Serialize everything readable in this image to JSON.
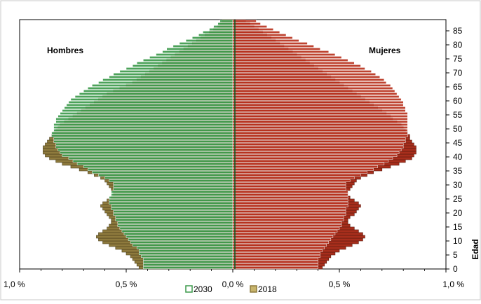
{
  "chart_data": {
    "type": "bar",
    "orientation": "horizontal",
    "title": "",
    "xlabel": "",
    "ylabel": "Edad",
    "xlim": [
      -1.0,
      1.0
    ],
    "ylim": [
      0,
      89
    ],
    "x_tick_labels": [
      "1,0 %",
      "0,5 %",
      "0,0 %",
      "0,5 %",
      "1,0 %"
    ],
    "x_tick_values": [
      -1.0,
      -0.5,
      0.0,
      0.5,
      1.0
    ],
    "y_tick_labels": [
      "0",
      "5",
      "10",
      "15",
      "20",
      "25",
      "30",
      "35",
      "40",
      "45",
      "50",
      "55",
      "60",
      "65",
      "70",
      "75",
      "80",
      "85"
    ],
    "y_tick_values": [
      0,
      5,
      10,
      15,
      20,
      25,
      30,
      35,
      40,
      45,
      50,
      55,
      60,
      65,
      70,
      75,
      80,
      85
    ],
    "grid": false,
    "legend_position": "bottom-center",
    "annotations": {
      "left": "Hombres",
      "right": "Mujeres"
    },
    "ages": [
      0,
      1,
      2,
      3,
      4,
      5,
      6,
      7,
      8,
      9,
      10,
      11,
      12,
      13,
      14,
      15,
      16,
      17,
      18,
      19,
      20,
      21,
      22,
      23,
      24,
      25,
      26,
      27,
      28,
      29,
      30,
      31,
      32,
      33,
      34,
      35,
      36,
      37,
      38,
      39,
      40,
      41,
      42,
      43,
      44,
      45,
      46,
      47,
      48,
      49,
      50,
      51,
      52,
      53,
      54,
      55,
      56,
      57,
      58,
      59,
      60,
      61,
      62,
      63,
      64,
      65,
      66,
      67,
      68,
      69,
      70,
      71,
      72,
      73,
      74,
      75,
      76,
      77,
      78,
      79,
      80,
      81,
      82,
      83,
      84,
      85,
      86,
      87,
      88
    ],
    "series": [
      {
        "name": "2030",
        "colors": {
          "male": "#3d9a4c",
          "female": "#b8331f"
        },
        "male": [
          0.42,
          0.42,
          0.42,
          0.42,
          0.43,
          0.44,
          0.44,
          0.45,
          0.47,
          0.48,
          0.49,
          0.5,
          0.51,
          0.52,
          0.53,
          0.54,
          0.54,
          0.55,
          0.55,
          0.56,
          0.56,
          0.57,
          0.57,
          0.58,
          0.58,
          0.58,
          0.57,
          0.57,
          0.56,
          0.56,
          0.56,
          0.58,
          0.6,
          0.63,
          0.66,
          0.68,
          0.7,
          0.73,
          0.75,
          0.77,
          0.8,
          0.81,
          0.82,
          0.83,
          0.83,
          0.84,
          0.84,
          0.85,
          0.85,
          0.84,
          0.84,
          0.84,
          0.83,
          0.83,
          0.82,
          0.81,
          0.8,
          0.79,
          0.78,
          0.77,
          0.76,
          0.74,
          0.72,
          0.7,
          0.68,
          0.66,
          0.63,
          0.61,
          0.58,
          0.56,
          0.53,
          0.5,
          0.47,
          0.45,
          0.42,
          0.39,
          0.36,
          0.33,
          0.31,
          0.28,
          0.25,
          0.22,
          0.19,
          0.16,
          0.14,
          0.11,
          0.09,
          0.07,
          0.06
        ],
        "female": [
          0.4,
          0.4,
          0.4,
          0.4,
          0.41,
          0.41,
          0.42,
          0.43,
          0.44,
          0.45,
          0.46,
          0.47,
          0.48,
          0.49,
          0.5,
          0.51,
          0.51,
          0.52,
          0.52,
          0.53,
          0.53,
          0.53,
          0.54,
          0.54,
          0.54,
          0.54,
          0.54,
          0.54,
          0.53,
          0.53,
          0.53,
          0.55,
          0.57,
          0.6,
          0.63,
          0.66,
          0.68,
          0.71,
          0.73,
          0.75,
          0.77,
          0.78,
          0.79,
          0.8,
          0.8,
          0.81,
          0.81,
          0.82,
          0.82,
          0.82,
          0.82,
          0.82,
          0.82,
          0.82,
          0.82,
          0.82,
          0.81,
          0.81,
          0.8,
          0.8,
          0.79,
          0.78,
          0.77,
          0.76,
          0.75,
          0.74,
          0.72,
          0.71,
          0.69,
          0.67,
          0.65,
          0.62,
          0.6,
          0.57,
          0.54,
          0.51,
          0.48,
          0.45,
          0.41,
          0.38,
          0.35,
          0.31,
          0.28,
          0.25,
          0.22,
          0.19,
          0.16,
          0.13,
          0.11
        ]
      },
      {
        "name": "2018",
        "colors": {
          "male": "#8e7a3d",
          "female": "#a82e1c"
        },
        "male": [
          0.44,
          0.45,
          0.46,
          0.47,
          0.48,
          0.5,
          0.52,
          0.55,
          0.58,
          0.61,
          0.63,
          0.64,
          0.63,
          0.61,
          0.59,
          0.58,
          0.57,
          0.57,
          0.58,
          0.59,
          0.6,
          0.61,
          0.62,
          0.61,
          0.59,
          0.57,
          0.56,
          0.56,
          0.57,
          0.58,
          0.59,
          0.6,
          0.62,
          0.65,
          0.68,
          0.72,
          0.76,
          0.8,
          0.83,
          0.86,
          0.88,
          0.89,
          0.89,
          0.89,
          0.88,
          0.87,
          0.86,
          0.85,
          0.84,
          0.83,
          0.82,
          0.81,
          0.79,
          0.77,
          0.75,
          0.73,
          0.71,
          0.69,
          0.67,
          0.65,
          0.63,
          0.61,
          0.59,
          0.56,
          0.53,
          0.5,
          0.47,
          0.45,
          0.43,
          0.41,
          0.39,
          0.37,
          0.35,
          0.33,
          0.31,
          0.29,
          0.27,
          0.25,
          0.23,
          0.21,
          0.19,
          0.17,
          0.15,
          0.13,
          0.11,
          0.09,
          0.07,
          0.06,
          0.05
        ],
        "female": [
          0.42,
          0.43,
          0.44,
          0.45,
          0.46,
          0.48,
          0.5,
          0.53,
          0.56,
          0.59,
          0.61,
          0.62,
          0.61,
          0.59,
          0.57,
          0.55,
          0.54,
          0.54,
          0.55,
          0.57,
          0.58,
          0.59,
          0.6,
          0.59,
          0.57,
          0.55,
          0.54,
          0.54,
          0.55,
          0.56,
          0.57,
          0.58,
          0.6,
          0.63,
          0.66,
          0.7,
          0.74,
          0.78,
          0.81,
          0.84,
          0.85,
          0.86,
          0.86,
          0.86,
          0.85,
          0.84,
          0.83,
          0.83,
          0.82,
          0.81,
          0.8,
          0.79,
          0.77,
          0.75,
          0.74,
          0.72,
          0.7,
          0.68,
          0.66,
          0.64,
          0.62,
          0.6,
          0.58,
          0.56,
          0.54,
          0.52,
          0.5,
          0.48,
          0.46,
          0.44,
          0.42,
          0.4,
          0.38,
          0.36,
          0.34,
          0.32,
          0.3,
          0.28,
          0.26,
          0.24,
          0.22,
          0.2,
          0.18,
          0.16,
          0.14,
          0.12,
          0.1,
          0.08,
          0.06
        ]
      }
    ]
  }
}
